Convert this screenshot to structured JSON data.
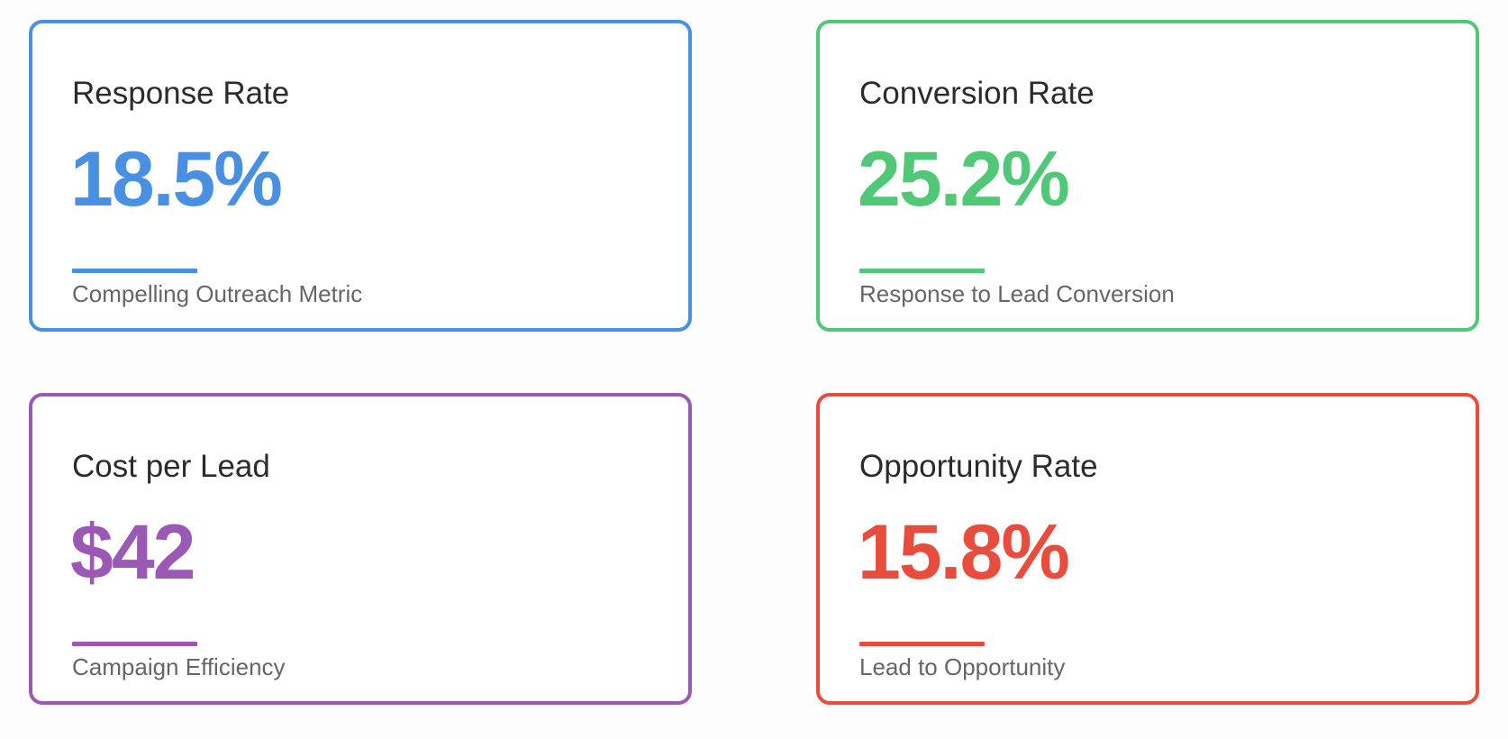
{
  "cards": [
    {
      "title": "Response Rate",
      "value": "18.5%",
      "subtitle": "Compelling Outreach Metric",
      "color": "#4a90e2"
    },
    {
      "title": "Conversion Rate",
      "value": "25.2%",
      "subtitle": "Response to Lead Conversion",
      "color": "#50c878"
    },
    {
      "title": "Cost per Lead",
      "value": "$42",
      "subtitle": "Campaign Efficiency",
      "color": "#9b59b6"
    },
    {
      "title": "Opportunity Rate",
      "value": "15.8%",
      "subtitle": "Lead to Opportunity",
      "color": "#e74c3c"
    }
  ]
}
